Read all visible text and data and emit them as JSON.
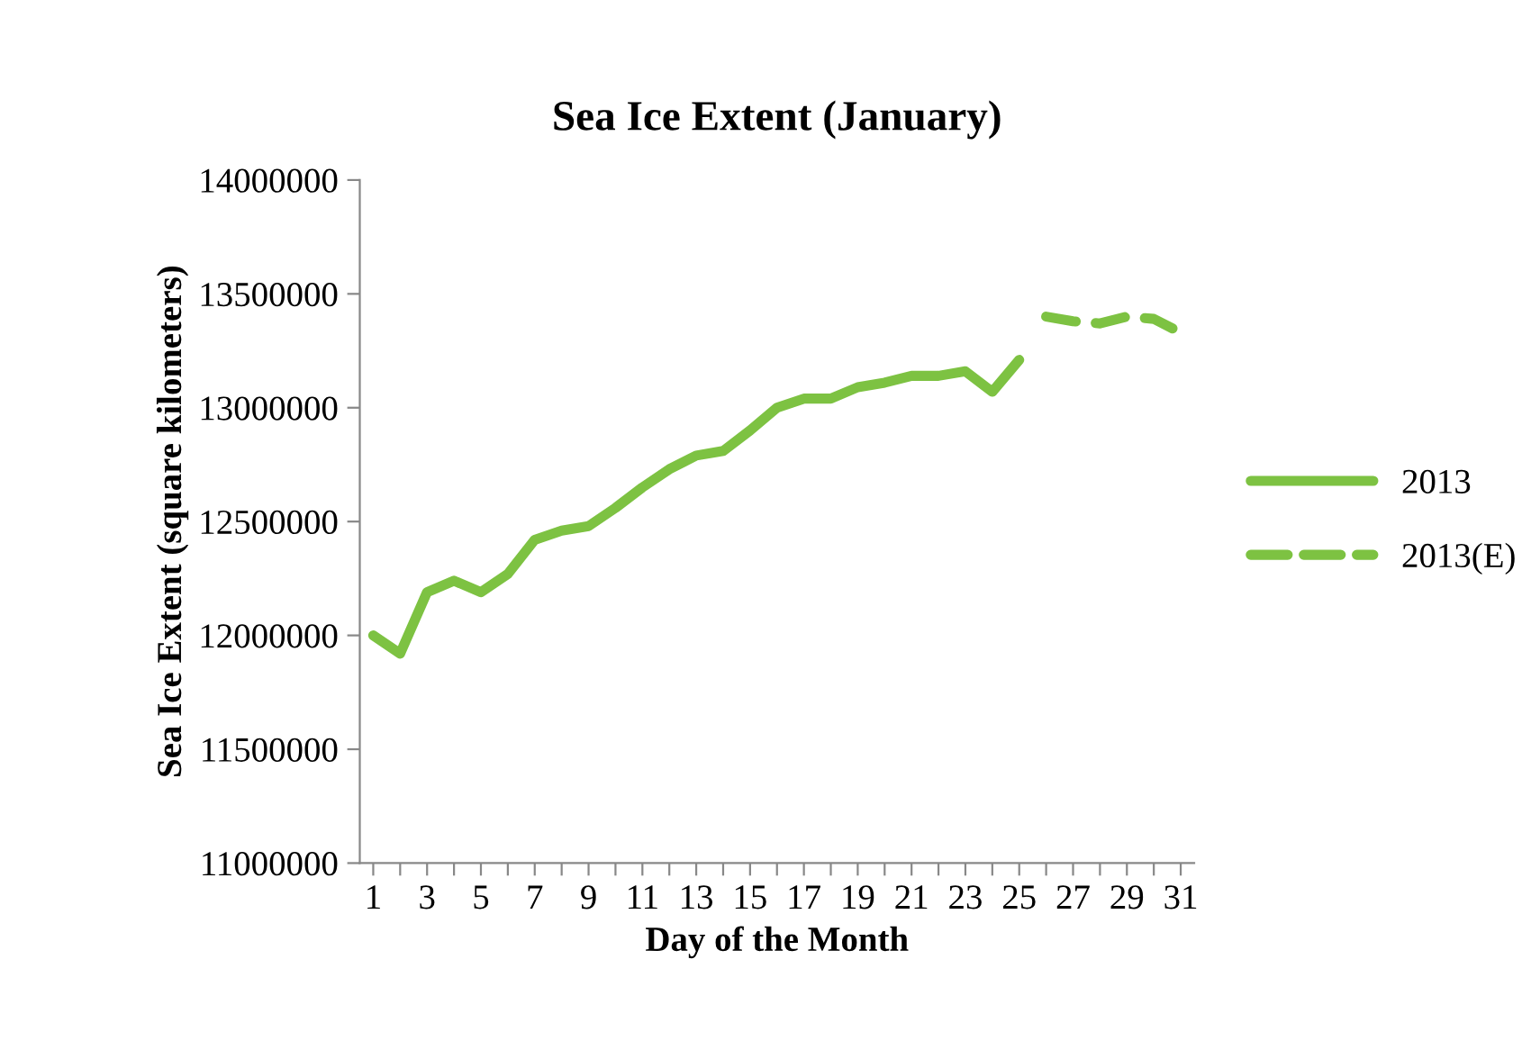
{
  "chart_data": {
    "type": "line",
    "title": "Sea Ice Extent (January)",
    "xlabel": "Day of the Month",
    "ylabel": "Sea Ice Extent (square kilometers)",
    "categories": [
      "1",
      null,
      "3",
      null,
      "5",
      null,
      "7",
      null,
      "9",
      null,
      "11",
      null,
      "13",
      null,
      "15",
      null,
      "17",
      null,
      "19",
      null,
      "21",
      null,
      "23",
      null,
      "25",
      null,
      "27",
      null,
      "29",
      null,
      "31"
    ],
    "series": [
      {
        "name": "2013",
        "color": "#7dc242",
        "line_style": "solid",
        "values": [
          12000000,
          11920000,
          12190000,
          12240000,
          12190000,
          12270000,
          12420000,
          12460000,
          12480000,
          12560000,
          12650000,
          12730000,
          12790000,
          12810000,
          12900000,
          13000000,
          13040000,
          13040000,
          13090000,
          13110000,
          13140000,
          13140000,
          13160000,
          13070000,
          13210000,
          null,
          null,
          null,
          null,
          null,
          null
        ]
      },
      {
        "name": "2013(E)",
        "color": "#7dc242",
        "line_style": "dashed",
        "values": [
          null,
          null,
          null,
          null,
          null,
          null,
          null,
          null,
          null,
          null,
          null,
          null,
          null,
          null,
          null,
          null,
          null,
          null,
          null,
          null,
          null,
          null,
          null,
          null,
          null,
          13400000,
          13380000,
          13370000,
          13400000,
          13390000,
          13330000
        ]
      }
    ],
    "ylim": [
      11000000,
      14000000
    ],
    "yticks": [
      11000000,
      11500000,
      12000000,
      12500000,
      13000000,
      13500000,
      14000000
    ],
    "grid": false,
    "legend": "right",
    "marker": "none"
  }
}
